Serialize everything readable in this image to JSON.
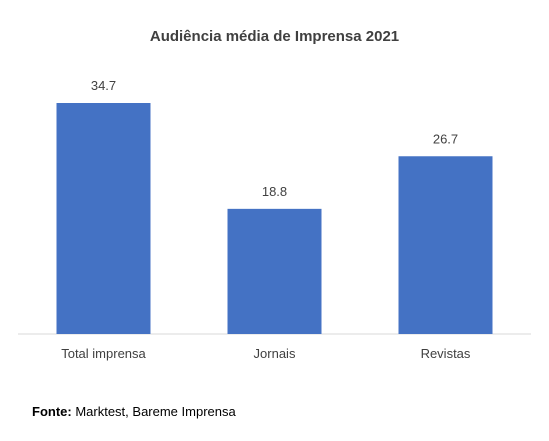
{
  "chart_data": {
    "type": "bar",
    "title": "Audiência média de Imprensa 2021",
    "categories": [
      "Total imprensa",
      "Jornais",
      "Revistas"
    ],
    "values": [
      34.7,
      18.8,
      26.7
    ],
    "xlabel": "",
    "ylabel": "",
    "ylim": [
      0,
      34.7
    ],
    "grid": false,
    "legend": "none",
    "bar_color": "#4472C4"
  },
  "source": {
    "label": "Fonte:",
    "text": " Marktest, Bareme Imprensa"
  }
}
